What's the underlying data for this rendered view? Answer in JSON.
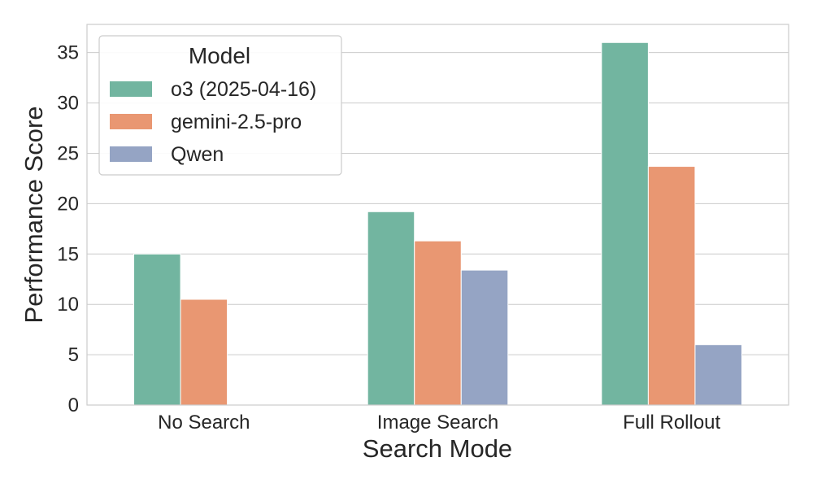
{
  "chart_data": {
    "type": "bar",
    "title": "",
    "xlabel": "Search Mode",
    "ylabel": "Performance Score",
    "categories": [
      "No Search",
      "Image Search",
      "Full Rollout"
    ],
    "series": [
      {
        "name": "o3 (2025-04-16)",
        "values": [
          15.0,
          19.2,
          36.0
        ],
        "color": "#72b5a0"
      },
      {
        "name": "gemini-2.5-pro",
        "values": [
          10.5,
          16.3,
          23.7
        ],
        "color": "#e99772"
      },
      {
        "name": "Qwen",
        "values": [
          null,
          13.4,
          6.0
        ],
        "color": "#95a4c4"
      }
    ],
    "ylim": [
      0,
      37.8
    ],
    "yticks": [
      0,
      5,
      10,
      15,
      20,
      25,
      30,
      35
    ],
    "grid": true,
    "legend": {
      "title": "Model",
      "placement": "top-left"
    }
  }
}
